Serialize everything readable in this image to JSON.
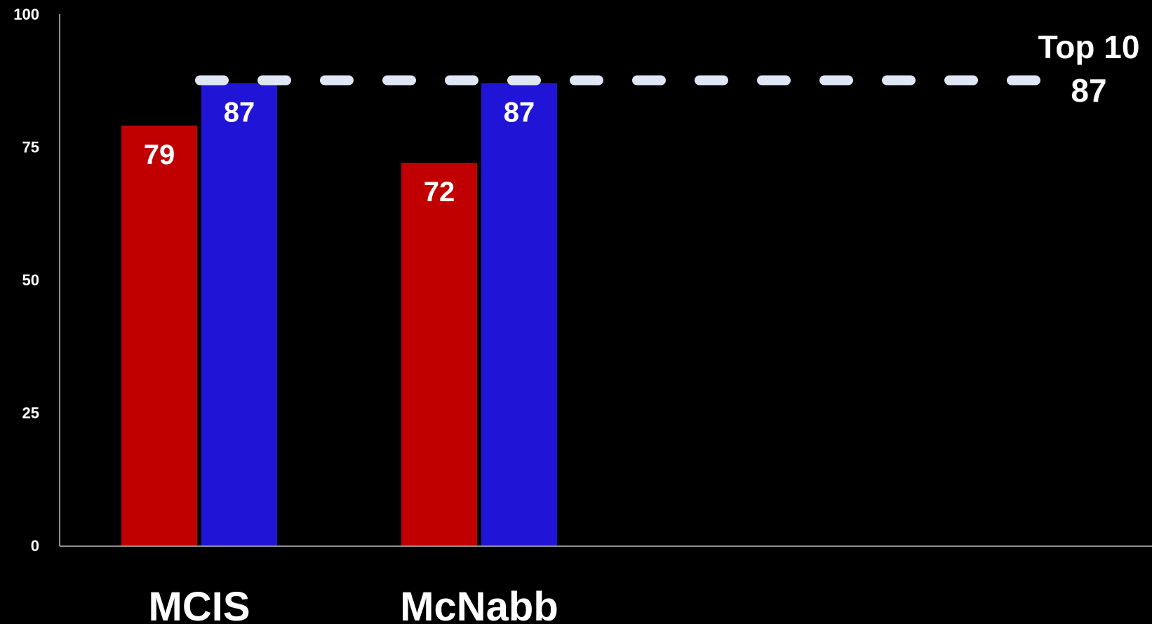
{
  "chart_data": {
    "type": "bar",
    "categories": [
      "MCIS",
      "McNabb"
    ],
    "series": [
      {
        "values": [
          79,
          72
        ],
        "color": "#c00000"
      },
      {
        "values": [
          87,
          87
        ],
        "color": "#2015d6"
      }
    ],
    "data_labels": [
      [
        "79",
        "72"
      ],
      [
        "87",
        "87"
      ]
    ],
    "ylim": [
      0,
      100
    ],
    "yticks": [
      "0",
      "25",
      "50",
      "75",
      "100"
    ],
    "grid": false,
    "legend": "none",
    "reference_line": {
      "value": 87,
      "label": "Top 10",
      "value_label": "87",
      "style": "dashed",
      "color": "#dfe6f5"
    }
  }
}
